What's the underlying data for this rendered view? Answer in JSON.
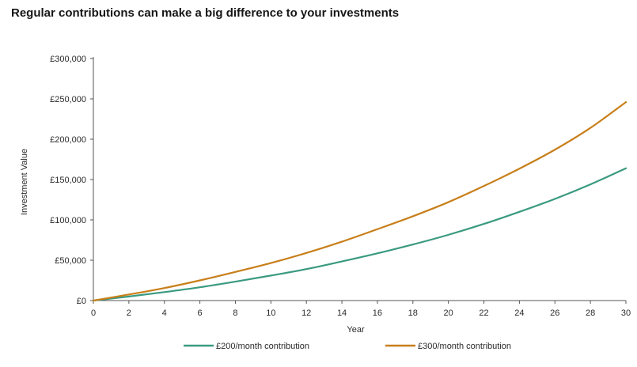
{
  "title": "Regular contributions can make a big difference to your investments",
  "chart_data": {
    "type": "line",
    "title": "Regular contributions can make a big difference to your investments",
    "xlabel": "Year",
    "ylabel": "Investment Value",
    "xlim": [
      0,
      30
    ],
    "ylim": [
      0,
      300000
    ],
    "x_ticks": [
      0,
      2,
      4,
      6,
      8,
      10,
      12,
      14,
      16,
      18,
      20,
      22,
      24,
      26,
      28,
      30
    ],
    "x_tick_labels": [
      "0",
      "2",
      "4",
      "6",
      "8",
      "10",
      "12",
      "14",
      "16",
      "18",
      "20",
      "22",
      "24",
      "26",
      "28",
      "30"
    ],
    "y_ticks": [
      0,
      50000,
      100000,
      150000,
      200000,
      250000,
      300000
    ],
    "y_tick_labels": [
      "£0",
      "£50,000",
      "£100,000",
      "£150,000",
      "£200,000",
      "£250,000",
      "£300,000"
    ],
    "grid": false,
    "legend_position": "bottom-center",
    "x": [
      0,
      2,
      4,
      6,
      8,
      10,
      12,
      14,
      16,
      18,
      20,
      22,
      24,
      26,
      28,
      30
    ],
    "series": [
      {
        "name": "£200/month contribution",
        "color": "#3a9a80",
        "values": [
          0,
          5000,
          10500,
          16500,
          23500,
          31000,
          39000,
          48500,
          58500,
          69500,
          81500,
          95000,
          110000,
          126000,
          144000,
          164000
        ]
      },
      {
        "name": "£300/month contribution",
        "color": "#c87f1a",
        "values": [
          0,
          7500,
          15500,
          25000,
          35500,
          46500,
          59000,
          73000,
          88500,
          104500,
          122000,
          142000,
          163500,
          187000,
          214000,
          246000
        ]
      }
    ]
  }
}
